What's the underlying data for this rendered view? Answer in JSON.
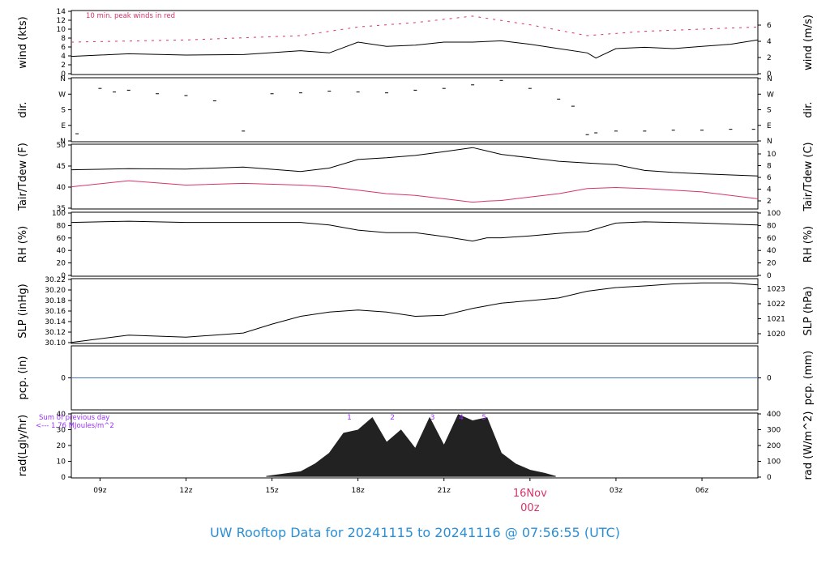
{
  "footer": {
    "title": "UW Rooftop Data for 20241115  to  20241116 @ 07:56:55  (UTC)"
  },
  "date_marker": {
    "day": "16Nov",
    "hour": "00z",
    "color": "#d6336c"
  },
  "x_axis": {
    "range_hours": [
      -16,
      7.95
    ],
    "ticks": [
      {
        "h": -15,
        "label": "09z"
      },
      {
        "h": -12,
        "label": "12z"
      },
      {
        "h": -9,
        "label": "15z"
      },
      {
        "h": -6,
        "label": "18z"
      },
      {
        "h": -3,
        "label": "21z"
      },
      {
        "h": 0,
        "label": ""
      },
      {
        "h": 3,
        "label": "03z"
      },
      {
        "h": 6,
        "label": "06z"
      }
    ]
  },
  "chart_data": [
    {
      "type": "line",
      "id": "wind",
      "ylabel_left": "wind (kts)",
      "ylabel_right": "wind (m/s)",
      "annotation": "10 min. peak winds in red",
      "annotation_color": "#d6336c",
      "ylim": [
        0,
        14.8
      ],
      "left_ticks": [
        "0",
        "2",
        "4",
        "6",
        "8",
        "10",
        "12",
        "14"
      ],
      "right_ticks": [
        "0",
        "2",
        "4",
        "6"
      ],
      "series": [
        {
          "x": [
            -16,
            -14,
            -12,
            -10,
            -8,
            -7,
            -6,
            -5,
            -4,
            -3,
            -2,
            -1,
            0,
            1,
            2,
            2.3,
            3,
            4,
            5,
            6,
            7,
            7.95
          ],
          "y": [
            4.2,
            4.8,
            4.5,
            4.6,
            5.5,
            5.0,
            7.5,
            6.5,
            6.8,
            7.5,
            7.5,
            7.8,
            7.0,
            6.0,
            5.0,
            3.8,
            6.0,
            6.3,
            6.0,
            6.5,
            7.0,
            8.0
          ],
          "color": "#000000"
        },
        {
          "x": [
            -16,
            -12,
            -8,
            -6,
            -4,
            -2,
            -1,
            0,
            2,
            4,
            6,
            7.95
          ],
          "y": [
            7.5,
            8.0,
            9.0,
            11.0,
            12.0,
            13.5,
            12.5,
            11.5,
            9.0,
            10.0,
            10.5,
            11.0
          ],
          "color": "#d6336c"
        }
      ]
    },
    {
      "type": "scatter",
      "id": "dir",
      "ylabel_left": "dir.",
      "ylabel_right": "dir.",
      "ylim": [
        0,
        360
      ],
      "left_ticks": [
        "N",
        "E",
        "S",
        "W",
        "N"
      ],
      "right_ticks": [
        "N",
        "E",
        "S",
        "W",
        "N"
      ],
      "series": [
        {
          "x": [
            -15.8,
            -15,
            -14.5,
            -14,
            -13,
            -12,
            -11,
            -10,
            -9,
            -8,
            -7,
            -6,
            -5,
            -4,
            -3,
            -2,
            -1,
            0,
            1,
            1.5,
            2,
            2.3,
            3,
            4,
            5,
            6,
            7,
            7.8
          ],
          "y": [
            45,
            300,
            280,
            290,
            270,
            260,
            230,
            60,
            270,
            275,
            285,
            280,
            275,
            290,
            300,
            320,
            345,
            300,
            240,
            200,
            40,
            50,
            60,
            60,
            65,
            65,
            70,
            70
          ],
          "color": "#000000"
        }
      ]
    },
    {
      "type": "line",
      "id": "temp",
      "ylabel_left": "Tair/Tdew (F)",
      "ylabel_right": "Tair/Tdew (C)",
      "ylim": [
        33.5,
        52.5
      ],
      "left_ticks": [
        "35",
        "40",
        "45",
        "50"
      ],
      "right_ticks": [
        "2",
        "4",
        "6",
        "8",
        "10"
      ],
      "series": [
        {
          "x": [
            -16,
            -14,
            -12,
            -10,
            -8,
            -7,
            -6,
            -5,
            -4,
            -3,
            -2,
            -1.5,
            -1,
            0,
            1,
            2,
            3,
            4,
            5,
            6,
            7.95
          ],
          "y": [
            45.0,
            45.3,
            45.2,
            45.8,
            44.5,
            45.5,
            48.0,
            48.5,
            49.2,
            50.3,
            51.5,
            50.5,
            49.5,
            48.5,
            47.5,
            47.0,
            46.5,
            44.8,
            44.2,
            43.8,
            43.2
          ],
          "color": "#000000"
        },
        {
          "x": [
            -16,
            -14,
            -12,
            -10,
            -8,
            -7,
            -6,
            -5,
            -4,
            -3,
            -2,
            -1.5,
            -1,
            0,
            1,
            2,
            3,
            4,
            5,
            6,
            7.95
          ],
          "y": [
            40.0,
            41.8,
            40.5,
            41.0,
            40.5,
            40.0,
            39.0,
            38.0,
            37.5,
            36.5,
            35.5,
            35.8,
            36.0,
            37.0,
            38.0,
            39.5,
            39.8,
            39.5,
            39.0,
            38.5,
            36.5
          ],
          "color": "#d6336c"
        }
      ]
    },
    {
      "type": "line",
      "id": "rh",
      "ylabel_left": "RH (%)",
      "ylabel_right": "RH (%)",
      "ylim": [
        0,
        100
      ],
      "left_ticks": [
        "0",
        "20",
        "40",
        "60",
        "80",
        "100"
      ],
      "right_ticks": [
        "0",
        "20",
        "40",
        "60",
        "80",
        "100"
      ],
      "series": [
        {
          "x": [
            -16,
            -14,
            -12,
            -10,
            -8,
            -7,
            -6,
            -5,
            -4,
            -3,
            -2,
            -1.5,
            -1,
            0,
            1,
            2,
            3,
            4,
            5,
            6,
            7.95
          ],
          "y": [
            84,
            86,
            84,
            84,
            84,
            80,
            72,
            68,
            68,
            62,
            55,
            60,
            60,
            63,
            67,
            70,
            83,
            85,
            84,
            83,
            80
          ],
          "color": "#000000"
        }
      ]
    },
    {
      "type": "line",
      "id": "slp",
      "ylabel_left": "SLP (inHg)",
      "ylabel_right": "SLP (hPa)",
      "ylim": [
        30.098,
        30.222
      ],
      "left_ticks": [
        "30.10",
        "30.12",
        "30.14",
        "30.16",
        "30.18",
        "30.20",
        "30.22"
      ],
      "right_ticks": [
        "1020",
        "1021",
        "1022",
        "1023"
      ],
      "series": [
        {
          "x": [
            -16,
            -14,
            -12,
            -10,
            -9,
            -8,
            -7,
            -6,
            -5,
            -4,
            -3,
            -2,
            -1,
            0,
            1,
            2,
            3,
            4,
            5,
            6,
            7,
            7.95
          ],
          "y": [
            30.1,
            30.114,
            30.11,
            30.118,
            30.135,
            30.15,
            30.158,
            30.162,
            30.158,
            30.15,
            30.152,
            30.165,
            30.175,
            30.18,
            30.185,
            30.198,
            30.205,
            30.208,
            30.212,
            30.214,
            30.214,
            30.21
          ],
          "color": "#000000"
        }
      ]
    },
    {
      "type": "line",
      "id": "pcp",
      "ylabel_left": "pcp. (in)",
      "ylabel_right": "pcp. (mm)",
      "ylim": [
        -1,
        1
      ],
      "left_ticks": [
        "0"
      ],
      "right_ticks": [
        "0"
      ],
      "series": [
        {
          "x": [
            -16,
            7.95
          ],
          "y": [
            0,
            0
          ],
          "color": "#4a78c0"
        }
      ]
    },
    {
      "type": "area",
      "id": "rad",
      "ylabel_left": "rad(Lgly/hr)",
      "ylabel_right": "rad (W/m^2)",
      "annotation": "Sum of previous day\n<--- 1.76 MJoules/m^2",
      "annotation_color": "#9b30ff",
      "ylim": [
        -1,
        41
      ],
      "left_ticks": [
        "0",
        "10",
        "20",
        "30",
        "40"
      ],
      "right_ticks": [
        "0",
        "100",
        "200",
        "300",
        "400"
      ],
      "peak_marks": [
        {
          "x": -6.3,
          "label": "1"
        },
        {
          "x": -4.8,
          "label": "2"
        },
        {
          "x": -3.4,
          "label": "3"
        },
        {
          "x": -2.4,
          "label": "4"
        },
        {
          "x": -1.6,
          "label": "5"
        }
      ],
      "series": [
        {
          "x": [
            -9.2,
            -8,
            -7.5,
            -7,
            -6.5,
            -6,
            -5.5,
            -5,
            -4.5,
            -4,
            -3.5,
            -3,
            -2.5,
            -2,
            -1.5,
            -1,
            -0.5,
            0,
            0.5,
            0.9
          ],
          "y": [
            0,
            3,
            8,
            15,
            28,
            30,
            38,
            22,
            30,
            18,
            38,
            20,
            40,
            36,
            38,
            15,
            8,
            4,
            2,
            0
          ],
          "color": "#222222"
        }
      ]
    }
  ]
}
